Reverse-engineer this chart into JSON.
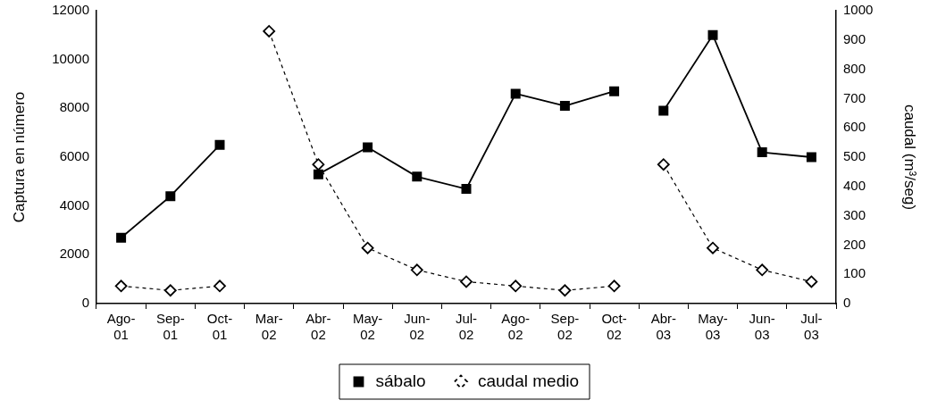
{
  "chart_data": {
    "type": "line",
    "categories": [
      "Ago-01",
      "Sep-01",
      "Oct-01",
      "Mar-02",
      "Abr-02",
      "May-02",
      "Jun-02",
      "Jul-02",
      "Ago-02",
      "Sep-02",
      "Oct-02",
      "Abr-03",
      "May-03",
      "Jun-03",
      "Jul-03"
    ],
    "ylabel": "Captura en número",
    "y2label": "caudal (m³/seg)",
    "ylim": [
      0,
      12000
    ],
    "yticks": [
      0,
      2000,
      4000,
      6000,
      8000,
      10000,
      12000
    ],
    "y2lim": [
      0,
      1000
    ],
    "y2ticks": [
      0,
      100,
      200,
      300,
      400,
      500,
      600,
      700,
      800,
      900,
      1000
    ],
    "grid": false,
    "legend": "bottom",
    "series": [
      {
        "name": "sábalo",
        "color": "#000000",
        "marker": "square",
        "line_style": "solid",
        "values": [
          2700,
          4400,
          6500,
          null,
          null,
          null,
          null,
          null,
          null,
          null,
          null,
          null,
          null,
          null,
          null
        ]
      },
      {
        "color": "#000000",
        "marker": "square",
        "line_style": "solid",
        "values": [
          null,
          null,
          null,
          null,
          5300,
          6400,
          5200,
          4700,
          8600,
          8100,
          8700,
          null,
          null,
          null,
          null
        ]
      },
      {
        "color": "#000000",
        "marker": "square",
        "line_style": "solid",
        "values": [
          null,
          null,
          null,
          null,
          null,
          null,
          null,
          null,
          null,
          null,
          null,
          7900,
          11000,
          6200,
          6000
        ]
      },
      {
        "name": "caudal medio",
        "color": "#000000",
        "marker": "diamond",
        "line_style": "dashed",
        "axis": "y2",
        "values": [
          60,
          45,
          60,
          null,
          null,
          null,
          null,
          null,
          null,
          null,
          null,
          null,
          null,
          null,
          null
        ]
      },
      {
        "color": "#000000",
        "marker": "diamond",
        "line_style": "dashed",
        "axis": "y2",
        "values": [
          null,
          null,
          null,
          930,
          475,
          190,
          115,
          75,
          60,
          45,
          60,
          null,
          null,
          null,
          null
        ]
      },
      {
        "color": "#000000",
        "marker": "diamond",
        "line_style": "dashed",
        "axis": "y2",
        "values": [
          null,
          null,
          null,
          null,
          null,
          null,
          null,
          null,
          null,
          null,
          null,
          475,
          190,
          115,
          75
        ]
      }
    ]
  }
}
